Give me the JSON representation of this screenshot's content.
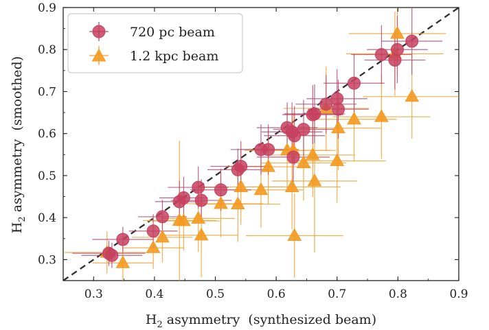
{
  "chart_data": {
    "type": "scatter",
    "xlabel": {
      "main": "H",
      "sub": "2",
      "rest": " asymmetry  (synthesized beam)"
    },
    "ylabel": {
      "main": "H",
      "sub": "2",
      "rest": " asymmetry  (smoothed)"
    },
    "xlim": [
      0.25,
      0.9
    ],
    "ylim": [
      0.25,
      0.9
    ],
    "xticks": [
      "0.3",
      "0.4",
      "0.5",
      "0.6",
      "0.7",
      "0.8",
      "0.9"
    ],
    "yticks": [
      "0.3",
      "0.4",
      "0.5",
      "0.6",
      "0.7",
      "0.8",
      "0.9"
    ],
    "grid": false,
    "legend_position": "top-left",
    "reference_line": "y = x",
    "series": [
      {
        "name": "720 pc beam",
        "marker": "circle",
        "color": "#c6415f",
        "errcolor": "#b5486f",
        "points": [
          {
            "x": 0.325,
            "y": 0.315,
            "xerr": 0.06,
            "yerr": 0.03
          },
          {
            "x": 0.33,
            "y": 0.31,
            "xerr": 0.05,
            "yerr": 0.03
          },
          {
            "x": 0.348,
            "y": 0.348,
            "xerr": 0.05,
            "yerr": 0.03
          },
          {
            "x": 0.398,
            "y": 0.368,
            "xerr": 0.04,
            "yerr": 0.04
          },
          {
            "x": 0.413,
            "y": 0.402,
            "xerr": 0.04,
            "yerr": 0.04
          },
          {
            "x": 0.441,
            "y": 0.438,
            "xerr": 0.04,
            "yerr": 0.05
          },
          {
            "x": 0.448,
            "y": 0.447,
            "xerr": 0.04,
            "yerr": 0.05
          },
          {
            "x": 0.472,
            "y": 0.472,
            "xerr": 0.05,
            "yerr": 0.05
          },
          {
            "x": 0.477,
            "y": 0.441,
            "xerr": 0.05,
            "yerr": 0.05
          },
          {
            "x": 0.509,
            "y": 0.466,
            "xerr": 0.05,
            "yerr": 0.05
          },
          {
            "x": 0.537,
            "y": 0.514,
            "xerr": 0.05,
            "yerr": 0.05
          },
          {
            "x": 0.542,
            "y": 0.522,
            "xerr": 0.05,
            "yerr": 0.06
          },
          {
            "x": 0.575,
            "y": 0.562,
            "xerr": 0.05,
            "yerr": 0.06
          },
          {
            "x": 0.587,
            "y": 0.562,
            "xerr": 0.05,
            "yerr": 0.06
          },
          {
            "x": 0.618,
            "y": 0.614,
            "xerr": 0.05,
            "yerr": 0.06
          },
          {
            "x": 0.626,
            "y": 0.604,
            "xerr": 0.05,
            "yerr": 0.07
          },
          {
            "x": 0.63,
            "y": 0.595,
            "xerr": 0.05,
            "yerr": 0.07
          },
          {
            "x": 0.628,
            "y": 0.544,
            "xerr": 0.06,
            "yerr": 0.07
          },
          {
            "x": 0.645,
            "y": 0.61,
            "xerr": 0.05,
            "yerr": 0.07
          },
          {
            "x": 0.66,
            "y": 0.645,
            "xerr": 0.05,
            "yerr": 0.07
          },
          {
            "x": 0.663,
            "y": 0.647,
            "xerr": 0.05,
            "yerr": 0.07
          },
          {
            "x": 0.682,
            "y": 0.67,
            "xerr": 0.05,
            "yerr": 0.07
          },
          {
            "x": 0.7,
            "y": 0.683,
            "xerr": 0.05,
            "yerr": 0.07
          },
          {
            "x": 0.702,
            "y": 0.658,
            "xerr": 0.05,
            "yerr": 0.07
          },
          {
            "x": 0.728,
            "y": 0.72,
            "xerr": 0.05,
            "yerr": 0.07
          },
          {
            "x": 0.773,
            "y": 0.788,
            "xerr": 0.05,
            "yerr": 0.07
          },
          {
            "x": 0.795,
            "y": 0.775,
            "xerr": 0.05,
            "yerr": 0.07
          },
          {
            "x": 0.799,
            "y": 0.8,
            "xerr": 0.05,
            "yerr": 0.08
          },
          {
            "x": 0.823,
            "y": 0.82,
            "xerr": 0.05,
            "yerr": 0.08
          }
        ]
      },
      {
        "name": "1.2 kpc beam",
        "marker": "triangle",
        "color": "#f39a20",
        "errcolor": "#f0a030",
        "points": [
          {
            "x": 0.322,
            "y": 0.317,
            "xerr": 0.07,
            "yerr": 0.05
          },
          {
            "x": 0.348,
            "y": 0.292,
            "xerr": 0.05,
            "yerr": 0.05
          },
          {
            "x": 0.398,
            "y": 0.328,
            "xerr": 0.05,
            "yerr": 0.05
          },
          {
            "x": 0.413,
            "y": 0.353,
            "xerr": 0.05,
            "yerr": 0.06
          },
          {
            "x": 0.441,
            "y": 0.393,
            "xerr": 0.06,
            "yerr": 0.19
          },
          {
            "x": 0.448,
            "y": 0.392,
            "xerr": 0.06,
            "yerr": 0.07
          },
          {
            "x": 0.472,
            "y": 0.398,
            "xerr": 0.06,
            "yerr": 0.08
          },
          {
            "x": 0.477,
            "y": 0.358,
            "xerr": 0.06,
            "yerr": 0.1
          },
          {
            "x": 0.509,
            "y": 0.433,
            "xerr": 0.07,
            "yerr": 0.08
          },
          {
            "x": 0.537,
            "y": 0.432,
            "xerr": 0.07,
            "yerr": 0.09
          },
          {
            "x": 0.542,
            "y": 0.473,
            "xerr": 0.07,
            "yerr": 0.09
          },
          {
            "x": 0.575,
            "y": 0.466,
            "xerr": 0.07,
            "yerr": 0.09
          },
          {
            "x": 0.587,
            "y": 0.521,
            "xerr": 0.07,
            "yerr": 0.09
          },
          {
            "x": 0.618,
            "y": 0.56,
            "xerr": 0.07,
            "yerr": 0.09
          },
          {
            "x": 0.626,
            "y": 0.473,
            "xerr": 0.08,
            "yerr": 0.1
          },
          {
            "x": 0.63,
            "y": 0.357,
            "xerr": 0.08,
            "yerr": 0.1
          },
          {
            "x": 0.628,
            "y": 0.56,
            "xerr": 0.07,
            "yerr": 0.09
          },
          {
            "x": 0.645,
            "y": 0.53,
            "xerr": 0.07,
            "yerr": 0.09
          },
          {
            "x": 0.66,
            "y": 0.549,
            "xerr": 0.07,
            "yerr": 0.1
          },
          {
            "x": 0.663,
            "y": 0.487,
            "xerr": 0.07,
            "yerr": 0.17
          },
          {
            "x": 0.682,
            "y": 0.66,
            "xerr": 0.07,
            "yerr": 0.1
          },
          {
            "x": 0.7,
            "y": 0.535,
            "xerr": 0.08,
            "yerr": 0.1
          },
          {
            "x": 0.702,
            "y": 0.613,
            "xerr": 0.07,
            "yerr": 0.1
          },
          {
            "x": 0.728,
            "y": 0.634,
            "xerr": 0.07,
            "yerr": 0.1
          },
          {
            "x": 0.773,
            "y": 0.64,
            "xerr": 0.08,
            "yerr": 0.1
          },
          {
            "x": 0.795,
            "y": 0.79,
            "xerr": 0.08,
            "yerr": 0.1
          },
          {
            "x": 0.799,
            "y": 0.838,
            "xerr": 0.08,
            "yerr": 0.1
          },
          {
            "x": 0.823,
            "y": 0.688,
            "xerr": 0.08,
            "yerr": 0.1
          }
        ]
      }
    ]
  }
}
